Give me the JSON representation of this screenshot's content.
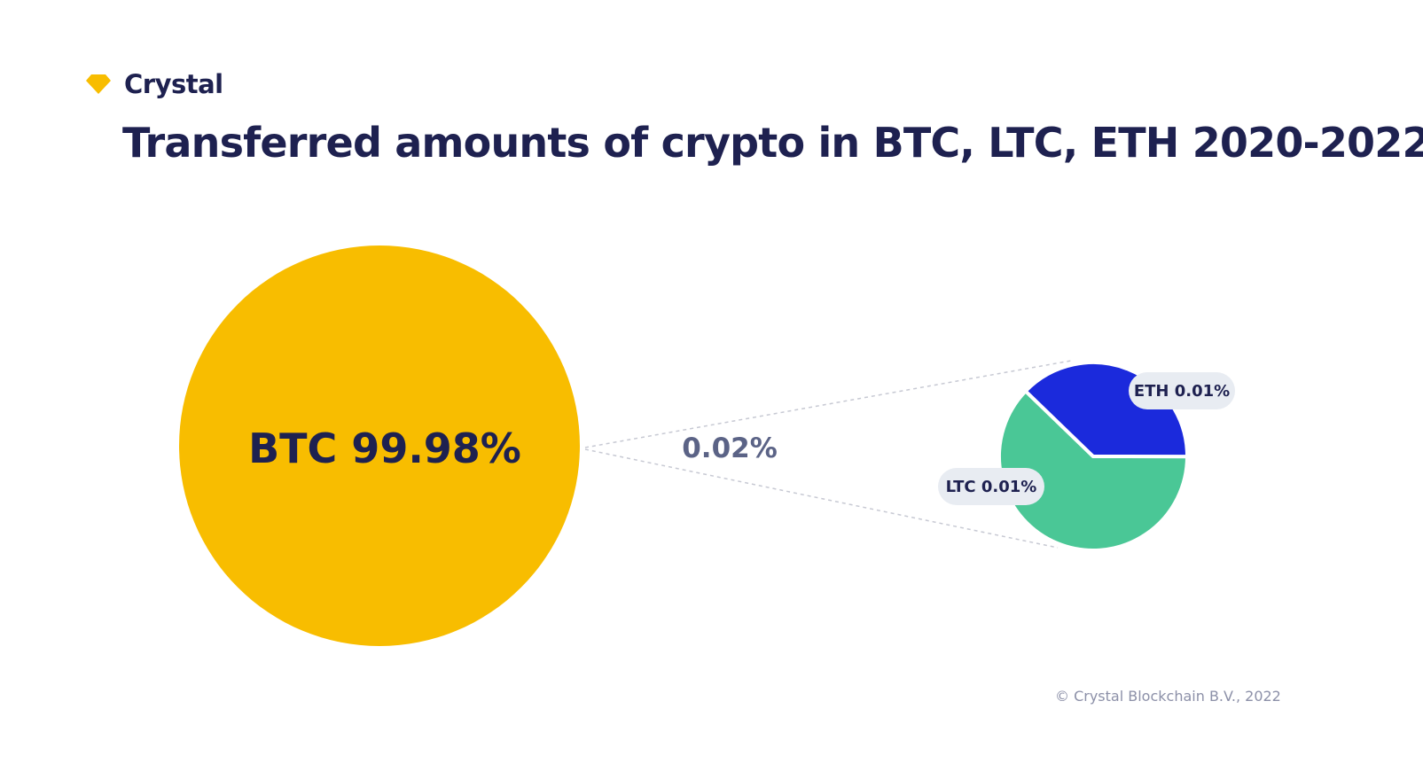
{
  "brand": {
    "name": "Crystal",
    "icon": "diamond-icon",
    "icon_color": "#f8bd00"
  },
  "title": "Transferred amounts of crypto in BTC, LTC, ETH 2020-2022",
  "copyright": "© Crystal Blockchain B.V., 2022",
  "colors": {
    "btc": "#f8bd00",
    "ltc": "#4ac796",
    "eth": "#1b2adc",
    "text_dark": "#1e2150",
    "text_muted": "#5b6386",
    "label_bg": "#e8ecf2",
    "connector": "#c7c9d3"
  },
  "chart_data": {
    "type": "pie",
    "title": "Transferred amounts of crypto in BTC, LTC, ETH 2020-2022",
    "main": {
      "name": "BTC",
      "value": 99.98,
      "label": "BTC 99.98%"
    },
    "rest": {
      "value": 0.02,
      "label": "0.02%"
    },
    "breakdown": [
      {
        "name": "ETH",
        "value": 0.01,
        "label": "ETH 0.01%"
      },
      {
        "name": "LTC",
        "value": 0.01,
        "label": "LTC 0.01%"
      }
    ]
  }
}
